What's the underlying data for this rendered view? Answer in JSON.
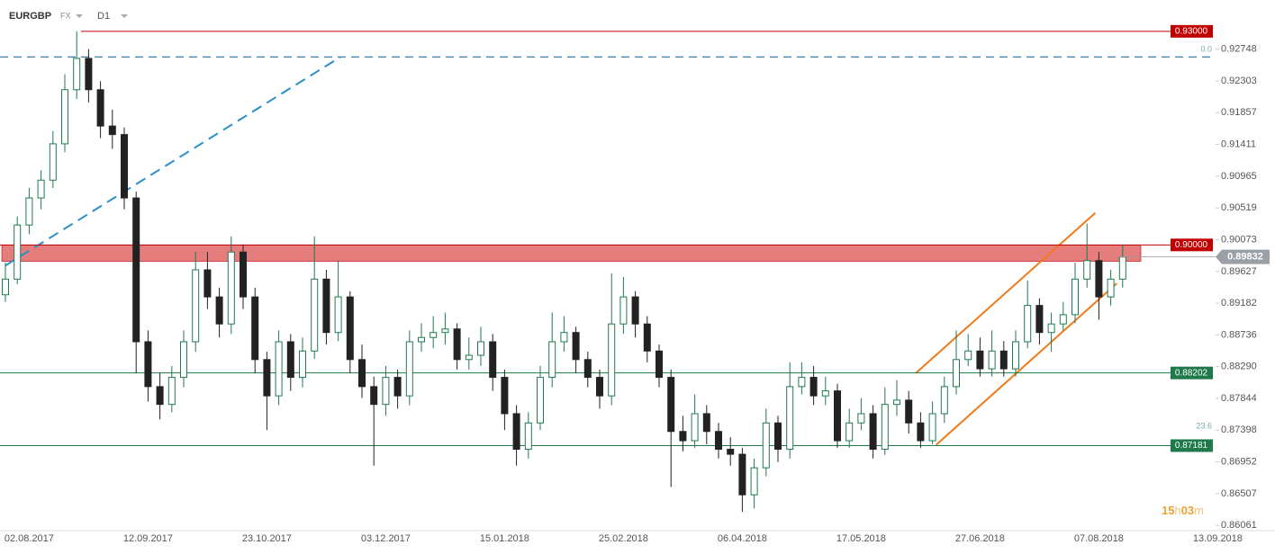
{
  "chart_data": {
    "type": "candlestick",
    "symbol": "EURGBP",
    "market": "FX",
    "interval": "D1",
    "ylim": [
      0.86,
      0.9344
    ],
    "yticks": [
      0.92748,
      0.92303,
      0.91857,
      0.91411,
      0.90965,
      0.90519,
      0.90073,
      0.89627,
      0.89182,
      0.88736,
      {
        "value": 0.8829,
        "label": "0.88290"
      },
      0.87844,
      0.87398,
      0.86952,
      0.86507,
      0.86061
    ],
    "categories": [
      null,
      null,
      "02.08.2017",
      null,
      null,
      null,
      null,
      null,
      null,
      null,
      null,
      null,
      "12.09.2017",
      null,
      null,
      null,
      null,
      null,
      null,
      null,
      null,
      null,
      "23.10.2017",
      null,
      null,
      null,
      null,
      null,
      null,
      null,
      null,
      null,
      "03.12.2017",
      null,
      null,
      null,
      null,
      null,
      null,
      null,
      null,
      null,
      "15.01.2018",
      null,
      null,
      null,
      null,
      null,
      null,
      null,
      null,
      null,
      "25.02.2018",
      null,
      null,
      null,
      null,
      null,
      null,
      null,
      null,
      null,
      "06.04.2018",
      null,
      null,
      null,
      null,
      null,
      null,
      null,
      null,
      null,
      "17.05.2018",
      null,
      null,
      null,
      null,
      null,
      null,
      null,
      null,
      null,
      "27.06.2018",
      null,
      null,
      null,
      null,
      null,
      null,
      null,
      null,
      null,
      "07.08.2018",
      null,
      null,
      null,
      null,
      null,
      null,
      null,
      null,
      null,
      "13.09.2018"
    ],
    "open": [
      0.893,
      0.8952,
      0.9028,
      0.9066,
      0.9091,
      0.9142,
      0.9218,
      0.9262,
      0.9218,
      0.9167,
      0.9155,
      0.9066,
      0.8864,
      0.8801,
      0.8776,
      0.8814,
      0.8864,
      0.8965,
      0.8927,
      0.8889,
      0.899,
      0.8927,
      0.8839,
      0.8788,
      0.8864,
      0.8814,
      0.8851,
      0.8952,
      0.8877,
      0.8927,
      0.8839,
      0.8801,
      0.8776,
      0.8814,
      0.8788,
      0.8864,
      0.887,
      0.8877,
      0.8882,
      0.8839,
      0.8845,
      0.8864,
      0.8814,
      0.8763,
      0.8713,
      0.875,
      0.8814,
      0.8864,
      0.8877,
      0.8839,
      0.8814,
      0.8788,
      0.8889,
      0.8927,
      0.8889,
      0.8851,
      0.8814,
      0.8738,
      0.8725,
      0.8763,
      0.8738,
      0.8713,
      0.8706,
      0.8649,
      0.8687,
      0.875,
      0.8713,
      0.8801,
      0.8814,
      0.8788,
      0.8795,
      0.8725,
      0.875,
      0.8763,
      0.8713,
      0.8776,
      0.8782,
      0.875,
      0.8725,
      0.8763,
      0.8801,
      0.8839,
      0.8851,
      0.8826,
      0.8851,
      0.8826,
      0.8864,
      0.8915,
      0.8877,
      0.8889,
      0.8902,
      0.8952,
      0.8978,
      0.8927,
      0.8952,
      null,
      null,
      null,
      null,
      null,
      null,
      null,
      null
    ],
    "high": [
      0.8975,
      0.904,
      0.908,
      0.9105,
      0.916,
      0.924,
      0.93,
      0.9275,
      0.923,
      0.919,
      0.9165,
      0.9075,
      0.888,
      0.882,
      0.883,
      0.888,
      0.899,
      0.899,
      0.894,
      0.9012,
      0.9,
      0.894,
      0.885,
      0.888,
      0.8875,
      0.887,
      0.9012,
      0.8965,
      0.8978,
      0.8935,
      0.886,
      0.8815,
      0.883,
      0.8825,
      0.888,
      0.889,
      0.89,
      0.8905,
      0.889,
      0.887,
      0.8885,
      0.8875,
      0.8825,
      0.8775,
      0.8765,
      0.883,
      0.8905,
      0.89,
      0.8885,
      0.885,
      0.8825,
      0.896,
      0.8955,
      0.8935,
      0.89,
      0.886,
      0.8825,
      0.876,
      0.879,
      0.8775,
      0.875,
      0.873,
      0.8715,
      0.87,
      0.877,
      0.876,
      0.8835,
      0.8835,
      0.883,
      0.8815,
      0.8805,
      0.877,
      0.8785,
      0.8775,
      0.88,
      0.881,
      0.8795,
      0.8765,
      0.878,
      0.8815,
      0.888,
      0.8875,
      0.887,
      0.888,
      0.8865,
      0.888,
      0.895,
      0.8925,
      0.8905,
      0.892,
      0.8975,
      0.903,
      0.899,
      0.8965,
      0.9,
      null,
      null,
      null,
      null,
      null,
      null,
      null,
      null
    ],
    "low": [
      0.892,
      0.8945,
      0.9015,
      0.905,
      0.908,
      0.913,
      0.9205,
      0.92,
      0.915,
      0.9135,
      0.905,
      0.882,
      0.878,
      0.8755,
      0.8765,
      0.88,
      0.885,
      0.891,
      0.887,
      0.8875,
      0.891,
      0.882,
      0.874,
      0.8775,
      0.8795,
      0.88,
      0.884,
      0.886,
      0.8865,
      0.882,
      0.8785,
      0.869,
      0.876,
      0.877,
      0.8775,
      0.885,
      0.8855,
      0.886,
      0.8825,
      0.8825,
      0.883,
      0.8795,
      0.874,
      0.869,
      0.87,
      0.874,
      0.88,
      0.885,
      0.882,
      0.88,
      0.877,
      0.8775,
      0.8875,
      0.887,
      0.8835,
      0.88,
      0.866,
      0.871,
      0.8715,
      0.872,
      0.87,
      0.869,
      0.8625,
      0.863,
      0.8675,
      0.8695,
      0.87,
      0.879,
      0.8775,
      0.8775,
      0.8715,
      0.8715,
      0.874,
      0.87,
      0.8705,
      0.876,
      0.8735,
      0.8715,
      0.872,
      0.875,
      0.879,
      0.883,
      0.8815,
      0.8815,
      0.8815,
      0.8815,
      0.8855,
      0.886,
      0.885,
      0.888,
      0.889,
      0.894,
      0.8895,
      0.8915,
      0.894,
      null,
      null,
      null,
      null,
      null,
      null,
      null,
      null
    ],
    "close": [
      0.8952,
      0.9028,
      0.9066,
      0.9091,
      0.9142,
      0.9218,
      0.9262,
      0.9218,
      0.9167,
      0.9155,
      0.9066,
      0.8864,
      0.8801,
      0.8776,
      0.8814,
      0.8864,
      0.8965,
      0.8927,
      0.8889,
      0.899,
      0.8927,
      0.8839,
      0.8788,
      0.8864,
      0.8814,
      0.8851,
      0.8952,
      0.8877,
      0.8927,
      0.8839,
      0.8801,
      0.8776,
      0.8814,
      0.8788,
      0.8864,
      0.887,
      0.8877,
      0.8882,
      0.8839,
      0.8845,
      0.8864,
      0.8814,
      0.8763,
      0.8713,
      0.875,
      0.8814,
      0.8864,
      0.8877,
      0.8839,
      0.8814,
      0.8788,
      0.8889,
      0.8927,
      0.8889,
      0.8851,
      0.8814,
      0.8738,
      0.8725,
      0.8763,
      0.8738,
      0.8713,
      0.8706,
      0.8649,
      0.8687,
      0.875,
      0.8713,
      0.8801,
      0.8814,
      0.8788,
      0.8795,
      0.8725,
      0.875,
      0.8763,
      0.8713,
      0.8776,
      0.8782,
      0.875,
      0.8725,
      0.8763,
      0.8801,
      0.8839,
      0.8851,
      0.8826,
      0.8851,
      0.8826,
      0.8864,
      0.8915,
      0.8877,
      0.8889,
      0.8902,
      0.8952,
      0.8978,
      0.8927,
      0.8952,
      0.8983,
      null,
      null,
      null,
      null,
      null,
      null,
      null,
      null
    ],
    "up_color": "#1f7a4f",
    "down_color": "#222222",
    "levels": [
      {
        "value": 0.93,
        "label": "0.93000",
        "color": "#c00000"
      },
      {
        "value": 0.9,
        "label": "0.90000",
        "color": "#c00000"
      },
      {
        "value": 0.88202,
        "label": "0.88202",
        "color": "#1e7a4a"
      },
      {
        "value": 0.87181,
        "label": "0.87181",
        "color": "#1e7a4a"
      }
    ],
    "current_price": 0.89832,
    "zone": {
      "from": 0.8977,
      "to": 0.9,
      "color": "#e06666"
    },
    "fibonacci": [
      {
        "value": 0.9264,
        "label": "0.0"
      },
      {
        "value": 0.8735,
        "label": "23.6"
      }
    ],
    "trendlines": [
      {
        "x": [
          0,
          28.2
        ],
        "y": [
          0.8971,
          0.9264
        ],
        "color": "#2a8fc8",
        "dashed": true
      },
      {
        "x": [
          76.6,
          91.7
        ],
        "y": [
          0.882,
          0.9045
        ],
        "color": "#f07a1a",
        "dashed": false
      },
      {
        "x": [
          78.3,
          93.5
        ],
        "y": [
          0.8719,
          0.8946
        ],
        "color": "#f07a1a",
        "dashed": false
      }
    ],
    "timer": [
      "15",
      "h",
      "03",
      "m"
    ]
  }
}
